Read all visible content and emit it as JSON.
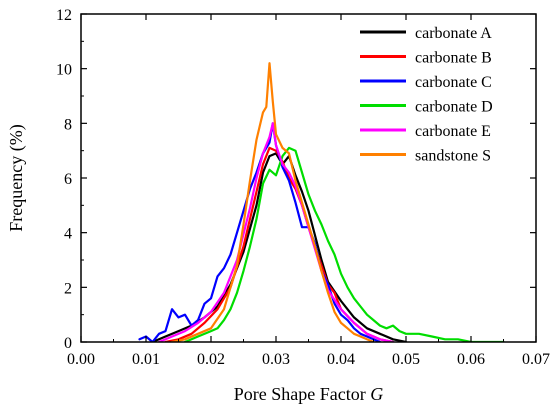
{
  "chart_data": {
    "type": "line",
    "xlabel": "Pore Shape Factor",
    "xlabel_var": "G",
    "ylabel": "Frequency (%)",
    "xlim": [
      0.0,
      0.07
    ],
    "ylim": [
      0,
      12
    ],
    "xticks": [
      "0.00",
      "0.01",
      "0.02",
      "0.03",
      "0.04",
      "0.05",
      "0.06",
      "0.07"
    ],
    "yticks": [
      "0",
      "2",
      "4",
      "6",
      "8",
      "10",
      "12"
    ],
    "legend_position": "top-right",
    "grid": false,
    "series": [
      {
        "name": "carbonate A",
        "color": "#000000",
        "points": [
          [
            0.011,
            0.0
          ],
          [
            0.013,
            0.2
          ],
          [
            0.015,
            0.4
          ],
          [
            0.017,
            0.6
          ],
          [
            0.019,
            0.9
          ],
          [
            0.021,
            1.3
          ],
          [
            0.023,
            2.1
          ],
          [
            0.025,
            3.3
          ],
          [
            0.027,
            5.0
          ],
          [
            0.028,
            6.2
          ],
          [
            0.029,
            6.8
          ],
          [
            0.03,
            6.9
          ],
          [
            0.031,
            6.5
          ],
          [
            0.032,
            6.8
          ],
          [
            0.033,
            6.1
          ],
          [
            0.034,
            5.5
          ],
          [
            0.035,
            4.8
          ],
          [
            0.036,
            3.9
          ],
          [
            0.037,
            3.0
          ],
          [
            0.038,
            2.2
          ],
          [
            0.04,
            1.5
          ],
          [
            0.042,
            0.9
          ],
          [
            0.044,
            0.5
          ],
          [
            0.046,
            0.3
          ],
          [
            0.048,
            0.1
          ],
          [
            0.05,
            0.0
          ]
        ]
      },
      {
        "name": "carbonate B",
        "color": "#ff0000",
        "points": [
          [
            0.013,
            0.0
          ],
          [
            0.015,
            0.1
          ],
          [
            0.017,
            0.3
          ],
          [
            0.019,
            0.7
          ],
          [
            0.021,
            1.2
          ],
          [
            0.023,
            2.0
          ],
          [
            0.025,
            3.5
          ],
          [
            0.027,
            5.5
          ],
          [
            0.028,
            6.5
          ],
          [
            0.029,
            7.1
          ],
          [
            0.03,
            7.0
          ],
          [
            0.031,
            6.6
          ],
          [
            0.032,
            6.0
          ],
          [
            0.033,
            5.6
          ],
          [
            0.034,
            5.0
          ],
          [
            0.035,
            4.2
          ],
          [
            0.036,
            3.5
          ],
          [
            0.037,
            2.8
          ],
          [
            0.038,
            2.1
          ],
          [
            0.039,
            1.8
          ],
          [
            0.04,
            1.2
          ],
          [
            0.042,
            0.7
          ],
          [
            0.044,
            0.3
          ],
          [
            0.046,
            0.1
          ],
          [
            0.048,
            0.0
          ]
        ]
      },
      {
        "name": "carbonate C",
        "color": "#0000ff",
        "points": [
          [
            0.009,
            0.1
          ],
          [
            0.01,
            0.2
          ],
          [
            0.011,
            0.0
          ],
          [
            0.012,
            0.3
          ],
          [
            0.013,
            0.4
          ],
          [
            0.014,
            1.2
          ],
          [
            0.015,
            0.9
          ],
          [
            0.016,
            1.0
          ],
          [
            0.017,
            0.6
          ],
          [
            0.018,
            0.8
          ],
          [
            0.019,
            1.4
          ],
          [
            0.02,
            1.6
          ],
          [
            0.021,
            2.4
          ],
          [
            0.022,
            2.7
          ],
          [
            0.023,
            3.2
          ],
          [
            0.024,
            4.0
          ],
          [
            0.025,
            4.8
          ],
          [
            0.026,
            5.6
          ],
          [
            0.027,
            6.2
          ],
          [
            0.028,
            6.9
          ],
          [
            0.029,
            7.3
          ],
          [
            0.0295,
            8.0
          ],
          [
            0.03,
            7.2
          ],
          [
            0.031,
            6.4
          ],
          [
            0.032,
            5.9
          ],
          [
            0.033,
            5.1
          ],
          [
            0.034,
            4.2
          ],
          [
            0.035,
            4.2
          ],
          [
            0.036,
            3.6
          ],
          [
            0.037,
            2.6
          ],
          [
            0.038,
            2.1
          ],
          [
            0.039,
            1.4
          ],
          [
            0.04,
            1.0
          ],
          [
            0.041,
            0.8
          ],
          [
            0.042,
            0.5
          ],
          [
            0.043,
            0.3
          ],
          [
            0.044,
            0.2
          ],
          [
            0.046,
            0.0
          ]
        ]
      },
      {
        "name": "carbonate D",
        "color": "#00dd00",
        "points": [
          [
            0.016,
            0.0
          ],
          [
            0.018,
            0.2
          ],
          [
            0.02,
            0.4
          ],
          [
            0.021,
            0.5
          ],
          [
            0.022,
            0.8
          ],
          [
            0.023,
            1.2
          ],
          [
            0.024,
            1.8
          ],
          [
            0.025,
            2.6
          ],
          [
            0.026,
            3.5
          ],
          [
            0.027,
            4.5
          ],
          [
            0.028,
            5.8
          ],
          [
            0.029,
            6.3
          ],
          [
            0.03,
            6.1
          ],
          [
            0.031,
            6.8
          ],
          [
            0.032,
            7.1
          ],
          [
            0.033,
            7.0
          ],
          [
            0.034,
            6.2
          ],
          [
            0.035,
            5.4
          ],
          [
            0.036,
            4.8
          ],
          [
            0.037,
            4.3
          ],
          [
            0.038,
            3.7
          ],
          [
            0.039,
            3.2
          ],
          [
            0.04,
            2.5
          ],
          [
            0.041,
            2.0
          ],
          [
            0.042,
            1.6
          ],
          [
            0.043,
            1.3
          ],
          [
            0.044,
            1.0
          ],
          [
            0.045,
            0.8
          ],
          [
            0.046,
            0.6
          ],
          [
            0.047,
            0.5
          ],
          [
            0.048,
            0.6
          ],
          [
            0.049,
            0.4
          ],
          [
            0.05,
            0.3
          ],
          [
            0.052,
            0.3
          ],
          [
            0.054,
            0.2
          ],
          [
            0.056,
            0.1
          ],
          [
            0.058,
            0.1
          ],
          [
            0.06,
            0.0
          ],
          [
            0.065,
            0.0
          ]
        ]
      },
      {
        "name": "carbonate E",
        "color": "#ff00ff",
        "points": [
          [
            0.012,
            0.0
          ],
          [
            0.014,
            0.2
          ],
          [
            0.016,
            0.4
          ],
          [
            0.018,
            0.7
          ],
          [
            0.02,
            1.1
          ],
          [
            0.022,
            1.8
          ],
          [
            0.024,
            3.0
          ],
          [
            0.026,
            4.9
          ],
          [
            0.027,
            6.0
          ],
          [
            0.028,
            6.9
          ],
          [
            0.029,
            7.5
          ],
          [
            0.0295,
            8.0
          ],
          [
            0.03,
            7.2
          ],
          [
            0.031,
            6.5
          ],
          [
            0.032,
            6.2
          ],
          [
            0.033,
            5.7
          ],
          [
            0.034,
            5.0
          ],
          [
            0.035,
            4.2
          ],
          [
            0.036,
            3.4
          ],
          [
            0.037,
            2.6
          ],
          [
            0.038,
            1.9
          ],
          [
            0.04,
            1.2
          ],
          [
            0.042,
            0.7
          ],
          [
            0.044,
            0.3
          ],
          [
            0.046,
            0.1
          ],
          [
            0.048,
            0.0
          ]
        ]
      },
      {
        "name": "sandstone S",
        "color": "#ff8000",
        "points": [
          [
            0.014,
            0.0
          ],
          [
            0.016,
            0.1
          ],
          [
            0.018,
            0.3
          ],
          [
            0.02,
            0.5
          ],
          [
            0.022,
            1.2
          ],
          [
            0.024,
            2.8
          ],
          [
            0.025,
            4.3
          ],
          [
            0.026,
            5.9
          ],
          [
            0.027,
            7.4
          ],
          [
            0.028,
            8.4
          ],
          [
            0.0285,
            8.6
          ],
          [
            0.029,
            10.2
          ],
          [
            0.0295,
            8.8
          ],
          [
            0.03,
            7.6
          ],
          [
            0.031,
            7.1
          ],
          [
            0.032,
            6.9
          ],
          [
            0.033,
            5.9
          ],
          [
            0.034,
            5.1
          ],
          [
            0.035,
            4.3
          ],
          [
            0.036,
            3.5
          ],
          [
            0.037,
            2.6
          ],
          [
            0.038,
            1.8
          ],
          [
            0.039,
            1.1
          ],
          [
            0.04,
            0.7
          ],
          [
            0.041,
            0.5
          ],
          [
            0.042,
            0.3
          ],
          [
            0.043,
            0.2
          ],
          [
            0.045,
            0.0
          ]
        ]
      }
    ]
  }
}
